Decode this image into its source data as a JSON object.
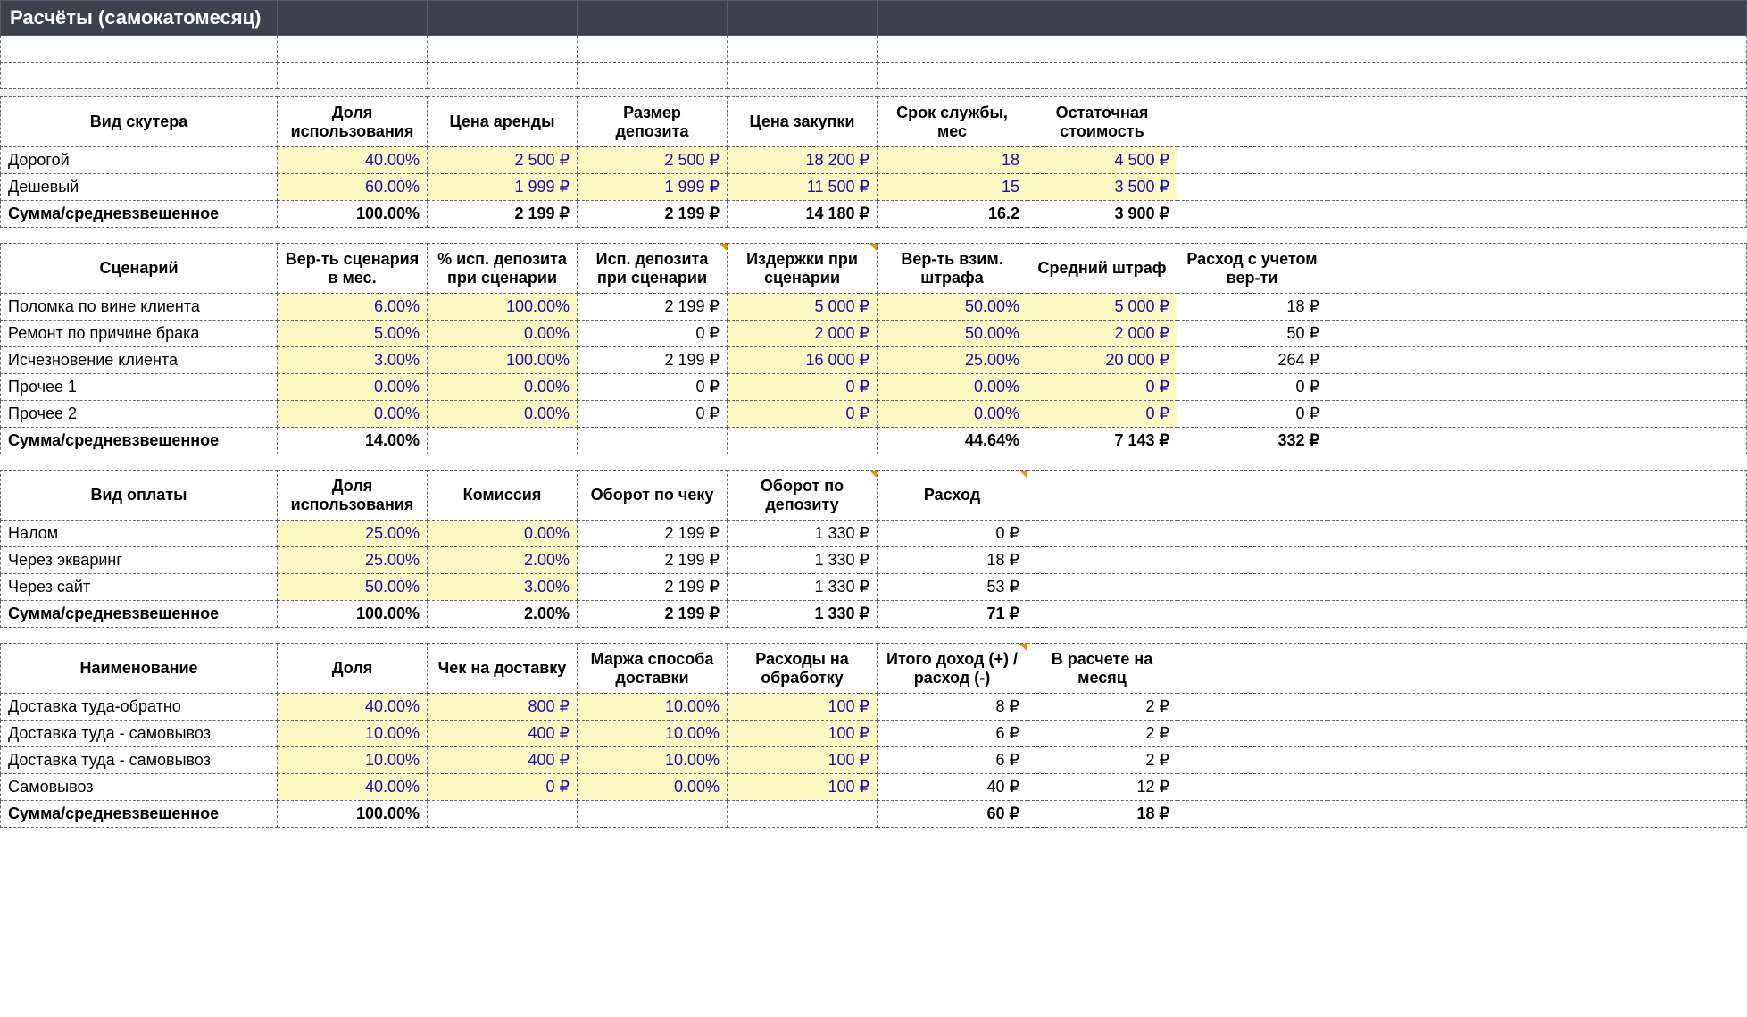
{
  "colors": {
    "header_bg": "#3c4150",
    "header_fg": "#ffffff",
    "input_bg": "#fff9c4",
    "input_fg": "#1a0dab",
    "border": "#666666",
    "sep_bg": "#eef0f5"
  },
  "title": "Расчёты (самокатомесяц)",
  "t1": {
    "headers": [
      "Вид скутера",
      "Доля использования",
      "Цена аренды",
      "Размер депозита",
      "Цена закупки",
      "Срок службы, мес",
      "Остаточная стоимость"
    ],
    "rows": [
      {
        "label": "Дорогой",
        "vals": [
          "40.00%",
          "2 500 ₽",
          "2 500 ₽",
          "18 200 ₽",
          "18",
          "4 500 ₽"
        ],
        "inp": [
          1,
          1,
          1,
          1,
          1,
          1
        ]
      },
      {
        "label": "Дешевый",
        "vals": [
          "60.00%",
          "1 999 ₽",
          "1 999 ₽",
          "11 500 ₽",
          "15",
          "3 500 ₽"
        ],
        "inp": [
          1,
          1,
          1,
          1,
          1,
          1
        ]
      }
    ],
    "total": {
      "label": "Сумма/средневзвешенное",
      "vals": [
        "100.00%",
        "2 199 ₽",
        "2 199 ₽",
        "14 180 ₽",
        "16.2",
        "3 900 ₽"
      ]
    }
  },
  "t2": {
    "headers": [
      "Сценарий",
      "Вер-ть сценария в мес.",
      "% исп. депозита при сценарии",
      "Исп. депозита при сценарии",
      "Издержки при сценарии",
      "Вер-ть взим. штрафа",
      "Средний штраф",
      "Расход с учетом вер-ти"
    ],
    "rows": [
      {
        "label": "Поломка по вине клиента",
        "vals": [
          "6.00%",
          "100.00%",
          "2 199 ₽",
          "5 000 ₽",
          "50.00%",
          "5 000 ₽",
          "18 ₽"
        ],
        "inp": [
          1,
          1,
          0,
          1,
          1,
          1,
          0
        ]
      },
      {
        "label": "Ремонт по причине брака",
        "vals": [
          "5.00%",
          "0.00%",
          "0 ₽",
          "2 000 ₽",
          "50.00%",
          "2 000 ₽",
          "50 ₽"
        ],
        "inp": [
          1,
          1,
          0,
          1,
          1,
          1,
          0
        ]
      },
      {
        "label": "Исчезновение клиента",
        "vals": [
          "3.00%",
          "100.00%",
          "2 199 ₽",
          "16 000 ₽",
          "25.00%",
          "20 000 ₽",
          "264 ₽"
        ],
        "inp": [
          1,
          1,
          0,
          1,
          1,
          1,
          0
        ]
      },
      {
        "label": "Прочее 1",
        "vals": [
          "0.00%",
          "0.00%",
          "0 ₽",
          "0 ₽",
          "0.00%",
          "0 ₽",
          "0 ₽"
        ],
        "inp": [
          1,
          1,
          0,
          1,
          1,
          1,
          0
        ]
      },
      {
        "label": "Прочее 2",
        "vals": [
          "0.00%",
          "0.00%",
          "0 ₽",
          "0 ₽",
          "0.00%",
          "0 ₽",
          "0 ₽"
        ],
        "inp": [
          1,
          1,
          0,
          1,
          1,
          1,
          0
        ]
      }
    ],
    "total": {
      "label": "Сумма/средневзвешенное",
      "vals": [
        "14.00%",
        "",
        "",
        "",
        "44.64%",
        "7 143 ₽",
        "332 ₽"
      ]
    }
  },
  "t3": {
    "headers": [
      "Вид оплаты",
      "Доля использования",
      "Комиссия",
      "Оборот по чеку",
      "Оборот по депозиту",
      "Расход"
    ],
    "rows": [
      {
        "label": "Налом",
        "vals": [
          "25.00%",
          "0.00%",
          "2 199 ₽",
          "1 330 ₽",
          "0 ₽"
        ],
        "inp": [
          1,
          1,
          0,
          0,
          0
        ]
      },
      {
        "label": "Через экваринг",
        "vals": [
          "25.00%",
          "2.00%",
          "2 199 ₽",
          "1 330 ₽",
          "18 ₽"
        ],
        "inp": [
          1,
          1,
          0,
          0,
          0
        ]
      },
      {
        "label": "Через сайт",
        "vals": [
          "50.00%",
          "3.00%",
          "2 199 ₽",
          "1 330 ₽",
          "53 ₽"
        ],
        "inp": [
          1,
          1,
          0,
          0,
          0
        ]
      }
    ],
    "total": {
      "label": "Сумма/средневзвешенное",
      "vals": [
        "100.00%",
        "2.00%",
        "2 199 ₽",
        "1 330 ₽",
        "71 ₽"
      ]
    }
  },
  "t4": {
    "headers": [
      "Наименование",
      "Доля",
      "Чек на доставку",
      "Маржа способа доставки",
      "Расходы на обработку",
      "Итого доход (+) / расход (-)",
      "В расчете на месяц"
    ],
    "rows": [
      {
        "label": "Доставка туда-обратно",
        "vals": [
          "40.00%",
          "800 ₽",
          "10.00%",
          "100 ₽",
          "8 ₽",
          "2 ₽"
        ],
        "inp": [
          1,
          1,
          1,
          1,
          0,
          0
        ]
      },
      {
        "label": "Доставка туда - самовывоз",
        "vals": [
          "10.00%",
          "400 ₽",
          "10.00%",
          "100 ₽",
          "6 ₽",
          "2 ₽"
        ],
        "inp": [
          1,
          1,
          1,
          1,
          0,
          0
        ]
      },
      {
        "label": "Доставка туда - самовывоз",
        "vals": [
          "10.00%",
          "400 ₽",
          "10.00%",
          "100 ₽",
          "6 ₽",
          "2 ₽"
        ],
        "inp": [
          1,
          1,
          1,
          1,
          0,
          0
        ]
      },
      {
        "label": "Самовывоз",
        "vals": [
          "40.00%",
          "0 ₽",
          "0.00%",
          "100 ₽",
          "40 ₽",
          "12 ₽"
        ],
        "inp": [
          1,
          1,
          1,
          1,
          0,
          0
        ]
      }
    ],
    "total": {
      "label": "Сумма/средневзвешенное",
      "vals": [
        "100.00%",
        "",
        "",
        "",
        "60 ₽",
        "18 ₽"
      ]
    }
  },
  "layout": {
    "max_cols": 9,
    "markers": {
      "t2_header_cols": [
        3,
        4
      ],
      "t3_header_cols": [
        4,
        5
      ],
      "t4_header_cols": [
        5
      ]
    }
  }
}
